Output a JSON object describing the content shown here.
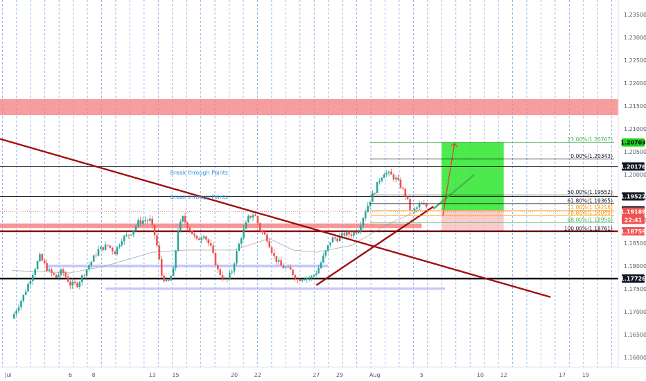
{
  "chart_data": {
    "type": "candlestick",
    "y_axis": {
      "ticks": [
        "1.23500",
        "1.23000",
        "1.22500",
        "1.22000",
        "1.21500",
        "1.21000",
        "1.20500",
        "1.20000",
        "1.19500",
        "1.19000",
        "1.18500",
        "1.18000",
        "1.17500",
        "1.17000",
        "1.16500",
        "1.16000"
      ],
      "ylim": [
        1.1575,
        1.2385
      ]
    },
    "x_axis": {
      "ticks": [
        {
          "label": "Jul",
          "day": 0.7
        },
        {
          "label": "6",
          "day": 6
        },
        {
          "label": "8",
          "day": 8
        },
        {
          "label": "13",
          "day": 13
        },
        {
          "label": "15",
          "day": 15
        },
        {
          "label": "20",
          "day": 20
        },
        {
          "label": "22",
          "day": 22
        },
        {
          "label": "27",
          "day": 27
        },
        {
          "label": "29",
          "day": 29
        },
        {
          "label": "Aug",
          "day": 32
        },
        {
          "label": "5",
          "day": 36
        },
        {
          "label": "10",
          "day": 41
        },
        {
          "label": "12",
          "day": 43
        },
        {
          "label": "17",
          "day": 48
        },
        {
          "label": "19",
          "day": 50
        }
      ]
    },
    "candle_anchors": [
      [
        1.2,
        1.1685
      ],
      [
        2.2,
        1.1735
      ],
      [
        3.0,
        1.1785
      ],
      [
        3.6,
        1.182
      ],
      [
        4.3,
        1.179
      ],
      [
        5.0,
        1.1775
      ],
      [
        5.5,
        1.179
      ],
      [
        6.2,
        1.176
      ],
      [
        6.8,
        1.176
      ],
      [
        7.4,
        1.1785
      ],
      [
        8.0,
        1.181
      ],
      [
        8.6,
        1.1835
      ],
      [
        9.4,
        1.1845
      ],
      [
        10.0,
        1.183
      ],
      [
        10.6,
        1.186
      ],
      [
        11.3,
        1.187
      ],
      [
        12.0,
        1.1895
      ],
      [
        12.5,
        1.19
      ],
      [
        13.0,
        1.19
      ],
      [
        13.5,
        1.186
      ],
      [
        14.0,
        1.178
      ],
      [
        14.5,
        1.176
      ],
      [
        15.0,
        1.179
      ],
      [
        15.4,
        1.188
      ],
      [
        15.8,
        1.1905
      ],
      [
        16.4,
        1.188
      ],
      [
        17.0,
        1.1855
      ],
      [
        17.6,
        1.187
      ],
      [
        18.2,
        1.184
      ],
      [
        18.8,
        1.179
      ],
      [
        19.5,
        1.1765
      ],
      [
        20.0,
        1.179
      ],
      [
        20.4,
        1.183
      ],
      [
        20.8,
        1.1865
      ],
      [
        21.4,
        1.1905
      ],
      [
        21.9,
        1.1915
      ],
      [
        22.4,
        1.188
      ],
      [
        23.0,
        1.186
      ],
      [
        23.6,
        1.182
      ],
      [
        24.2,
        1.18
      ],
      [
        25.0,
        1.179
      ],
      [
        25.6,
        1.177
      ],
      [
        26.2,
        1.1775
      ],
      [
        26.8,
        1.1775
      ],
      [
        27.3,
        1.179
      ],
      [
        27.9,
        1.1825
      ],
      [
        28.5,
        1.186
      ],
      [
        29.0,
        1.186
      ],
      [
        29.6,
        1.187
      ],
      [
        30.2,
        1.187
      ],
      [
        30.8,
        1.188
      ],
      [
        31.3,
        1.1915
      ],
      [
        31.8,
        1.1945
      ],
      [
        32.2,
        1.1965
      ],
      [
        32.6,
        1.199
      ],
      [
        33.0,
        1.2005
      ],
      [
        33.5,
        1.2
      ],
      [
        34.0,
        1.199
      ],
      [
        34.4,
        1.1975
      ],
      [
        34.9,
        1.195
      ],
      [
        35.3,
        1.1915
      ],
      [
        35.7,
        1.1925
      ],
      [
        36.1,
        1.1935
      ],
      [
        36.5,
        1.193
      ]
    ],
    "moving_average": [
      [
        1.0,
        1.179
      ],
      [
        6.0,
        1.1785
      ],
      [
        9.0,
        1.18
      ],
      [
        13.0,
        1.183
      ],
      [
        16.0,
        1.1835
      ],
      [
        20.0,
        1.1835
      ],
      [
        23.0,
        1.186
      ],
      [
        25.0,
        1.1835
      ],
      [
        27.0,
        1.183
      ],
      [
        30.0,
        1.1845
      ],
      [
        33.0,
        1.189
      ],
      [
        36.0,
        1.1925
      ]
    ],
    "horizontal_levels": [
      {
        "label": "1.20176",
        "value": 1.20176,
        "color": "#000000",
        "tag_bg": "#131722"
      },
      {
        "label": "1.19522",
        "value": 1.19522,
        "color": "#000000",
        "tag_bg": "#131722"
      },
      {
        "label": "1.18759",
        "value": 1.18759,
        "color": "#8b0000",
        "tag_bg": "#ef5350"
      },
      {
        "label": "1.17726",
        "value": 1.17726,
        "color": "#000000",
        "tag_bg": "#131722"
      }
    ],
    "price_tags": [
      {
        "label": "1.20703",
        "value": 1.20703,
        "bg": "#1ed41e",
        "fg": "#000000"
      },
      {
        "label": "1.19218",
        "value": 1.19218,
        "bg": "#131722",
        "fg": "#ffffff"
      },
      {
        "label": "1.19189",
        "value": 1.19189,
        "bg": "#ef5350",
        "fg": "#ffffff"
      },
      {
        "label": "22:41",
        "value": 1.1901,
        "bg": "#ef5350",
        "fg": "#ffffff"
      }
    ],
    "resistance_zone": {
      "from": 1.213,
      "to": 1.2165,
      "color": "#f47c7c"
    },
    "support_zones": [
      {
        "from": 1.1883,
        "to": 1.1893,
        "day_from": 0,
        "day_to": 36,
        "color": "#f47c7c"
      },
      {
        "from": 1.1797,
        "to": 1.1803,
        "day_from": 4,
        "day_to": 28,
        "color": "#b9b9f5"
      },
      {
        "from": 1.1748,
        "to": 1.1753,
        "day_from": 9,
        "day_to": 38,
        "color": "#b9b9f5"
      }
    ],
    "trendlines": [
      {
        "name": "descending",
        "from": [
          0,
          1.2078
        ],
        "to": [
          47,
          1.1732
        ],
        "color": "#a01010"
      },
      {
        "name": "ascending",
        "from": [
          27,
          1.1758
        ],
        "to": [
          37,
          1.193
        ],
        "color": "#a01010"
      }
    ],
    "fibonacci": [
      {
        "label": "23.00%(1.20707)",
        "value": 1.20707,
        "color": "#4caf50"
      },
      {
        "label": "0.00%(1.20343)",
        "value": 1.20343,
        "color": "#000000"
      },
      {
        "label": "50.00%(1.19552)",
        "value": 1.19552,
        "color": "#000000"
      },
      {
        "label": "61.80%(1.19365)",
        "value": 1.19365,
        "color": "#000000"
      },
      {
        "label": "71.00%(1.19218)",
        "value": 1.19218,
        "color": "#ff9800"
      },
      {
        "label": "78.60%(1.19099)",
        "value": 1.19099,
        "color": "#ff9800"
      },
      {
        "label": "88.00%(1.18950)",
        "value": 1.1895,
        "color": "#4caf50"
      },
      {
        "label": "100.00%(1.18761)",
        "value": 1.18761,
        "color": "#000000"
      }
    ],
    "position": {
      "day_from": 37.7,
      "day_to": 43,
      "entry": 1.19218,
      "target": 1.20703,
      "stop": 1.18761
    },
    "projection": {
      "from": [
        37.0,
        1.1925
      ],
      "to": [
        40.5,
        1.2
      ]
    },
    "annotations": [
      {
        "text": "Break through Points",
        "day": 17,
        "value": 1.2,
        "color": "#2f8fd6"
      },
      {
        "text": "Break through Points",
        "day": 17,
        "value": 1.1947,
        "color": "#2f8fd6"
      }
    ]
  }
}
